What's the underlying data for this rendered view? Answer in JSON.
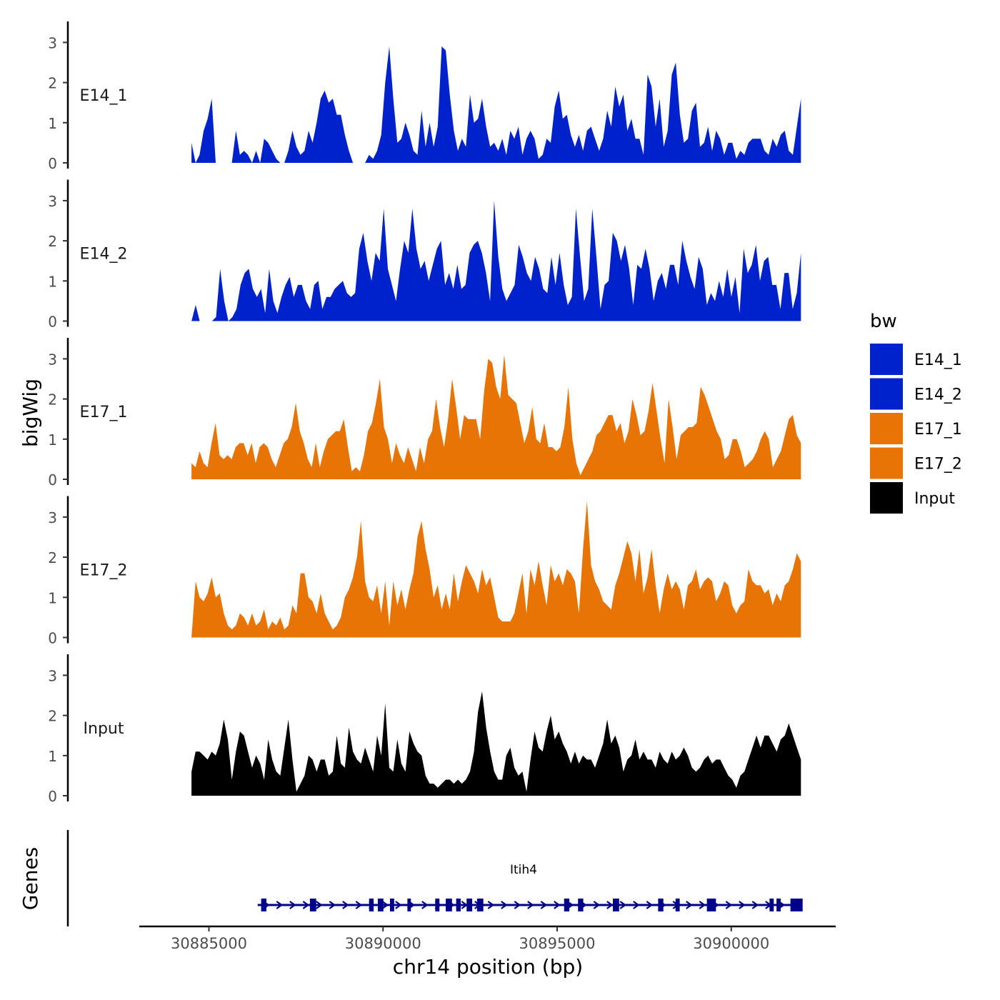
{
  "chart_data": {
    "type": "area",
    "ylabel": "bigWig",
    "xlabel": "chr14 position (bp)",
    "genes_label": "Genes",
    "gene_name": "Itih4",
    "legend_title": "bw",
    "legend_position": "right",
    "xlim": [
      30883000,
      30903000
    ],
    "x_ticks": [
      30885000,
      30890000,
      30895000,
      30900000
    ],
    "x_tick_labels": [
      "30885000",
      "30890000",
      "30895000",
      "30900000"
    ],
    "ylim": [
      0,
      3.5
    ],
    "y_ticks": [
      0,
      1,
      2,
      3
    ],
    "y_tick_labels": [
      "0",
      "1",
      "2",
      "3"
    ],
    "grid": false,
    "signal_start": 30884500,
    "signal_end": 30902000,
    "tracks": [
      {
        "name": "E14_1",
        "color": "#0022cc",
        "values": [
          0.5,
          0,
          0.2,
          0.8,
          1.1,
          1.6,
          0,
          0,
          0,
          0,
          0,
          0.8,
          0.2,
          0.3,
          0.2,
          0,
          0.3,
          0,
          0.6,
          0.5,
          0.3,
          0.1,
          0,
          0,
          0.3,
          0.8,
          0.4,
          0.2,
          0.3,
          0.8,
          0.5,
          1.0,
          1.6,
          1.8,
          1.5,
          1.6,
          1.2,
          1.2,
          0.7,
          0.3,
          0,
          0,
          0,
          0,
          0.2,
          0.1,
          0.3,
          0.7,
          2.0,
          2.9,
          1.6,
          0.5,
          0.6,
          1.0,
          0.7,
          0.3,
          0.2,
          1.3,
          0.4,
          1.0,
          0.4,
          0.9,
          2.9,
          2.8,
          1.7,
          0.8,
          0.3,
          0.6,
          0.4,
          1.7,
          1.0,
          1.1,
          1.6,
          0.9,
          0.4,
          0.5,
          0.3,
          0.6,
          0.2,
          0.8,
          0.6,
          0.9,
          0.2,
          0.6,
          0.8,
          0.6,
          0.1,
          0.2,
          0.6,
          0.5,
          1.4,
          1.8,
          1.1,
          1.2,
          0.7,
          0.4,
          0.7,
          0.3,
          0.8,
          0.9,
          0.6,
          0.3,
          0.6,
          1.3,
          0.9,
          1.9,
          1.4,
          1.7,
          0.8,
          1.1,
          0.6,
          0.6,
          0.2,
          2.2,
          1.9,
          0.9,
          1.6,
          0.4,
          0.8,
          2.2,
          2.5,
          1.2,
          0.5,
          0.6,
          1.3,
          1.5,
          0.4,
          0.5,
          0.9,
          0.3,
          0.8,
          0.6,
          0.2,
          0.5,
          0.5,
          0.1,
          0.3,
          0.2,
          0.5,
          0.6,
          0.6,
          0.6,
          0.3,
          0.2,
          0.6,
          0.4,
          0.7,
          0.8,
          0.3,
          0.2,
          0.9,
          1.6
        ]
      },
      {
        "name": "E14_2",
        "color": "#0022cc",
        "values": [
          0,
          0.4,
          0,
          0,
          0,
          0,
          0.1,
          1.3,
          0.5,
          0,
          0.1,
          0.3,
          0.9,
          1.2,
          1.3,
          0.8,
          0.6,
          0.8,
          0.2,
          1.3,
          0.5,
          0.2,
          0.6,
          0.9,
          1.1,
          0.6,
          0.9,
          0.9,
          0.5,
          0.3,
          0.9,
          1.0,
          0.3,
          0.6,
          0.6,
          0.8,
          0.9,
          1.0,
          0.7,
          0.6,
          0.7,
          1.8,
          2.2,
          1.5,
          1.0,
          1.7,
          1.5,
          2.8,
          1.3,
          0.9,
          0.5,
          1.3,
          2.0,
          1.7,
          2.8,
          1.8,
          1.3,
          1.5,
          1.0,
          1.4,
          1.8,
          2.0,
          0.9,
          1.2,
          0.8,
          1.4,
          0.8,
          0.9,
          1.7,
          1.9,
          2.0,
          1.7,
          1.2,
          0.5,
          3.0,
          1.6,
          0.8,
          0.5,
          0.7,
          0.9,
          1.9,
          1.6,
          1.2,
          1.0,
          1.6,
          1.3,
          0.8,
          0.7,
          1.6,
          0.9,
          1.7,
          0.9,
          0.4,
          0.6,
          2.8,
          1.6,
          0.5,
          0.8,
          2.8,
          1.6,
          0.3,
          0.9,
          1.0,
          2.2,
          2.0,
          1.5,
          1.9,
          1.3,
          0.4,
          1.4,
          1.3,
          1.8,
          1.3,
          0.5,
          1.0,
          1.2,
          0.8,
          1.4,
          1.4,
          0.9,
          2.0,
          1.5,
          1.1,
          0.8,
          1.6,
          1.3,
          0.4,
          0.7,
          0.5,
          1.0,
          0.6,
          1.3,
          0.6,
          1.1,
          0.2,
          1.8,
          1.2,
          1.4,
          1.9,
          1.0,
          1.5,
          1.6,
          0.9,
          0.9,
          0.3,
          1.2,
          1.2,
          0.3,
          0.7,
          1.7
        ]
      },
      {
        "name": "E17_1",
        "color": "#e87405",
        "values": [
          0.4,
          0.3,
          0.7,
          0.4,
          0.3,
          0.9,
          1.4,
          0.6,
          0.5,
          0.6,
          0.5,
          0.8,
          0.9,
          0.9,
          0.6,
          0.9,
          0.4,
          0.8,
          0.9,
          0.8,
          0.5,
          0.3,
          0.6,
          0.9,
          1.0,
          1.3,
          1.9,
          1.2,
          0.9,
          0.5,
          0.3,
          0.9,
          0.3,
          0.7,
          1.0,
          1.1,
          1.2,
          1.2,
          1.5,
          0.8,
          0.2,
          0.3,
          0.2,
          0.6,
          1.2,
          1.4,
          1.9,
          2.5,
          1.3,
          1.0,
          0.4,
          0.9,
          0.6,
          0.4,
          0.8,
          0.5,
          0.2,
          0.8,
          0.4,
          1.0,
          1.2,
          2.0,
          1.3,
          0.8,
          1.5,
          2.5,
          1.8,
          1.0,
          1.6,
          1.5,
          1.5,
          1.5,
          1.0,
          2.2,
          3.0,
          2.9,
          2.3,
          2.0,
          3.1,
          2.1,
          2.0,
          1.9,
          1.4,
          0.9,
          1.2,
          1.8,
          1.0,
          0.9,
          1.4,
          0.8,
          0.8,
          0.7,
          0.8,
          1.3,
          2.3,
          1.0,
          0.4,
          0.1,
          0.3,
          0.5,
          0.7,
          1.1,
          1.2,
          1.4,
          1.6,
          1.6,
          1.2,
          1.4,
          0.9,
          1.2,
          2.0,
          1.6,
          1.1,
          1.2,
          1.7,
          2.4,
          1.7,
          1.0,
          0.4,
          2.0,
          1.3,
          0.5,
          1.1,
          1.2,
          1.3,
          1.3,
          1.4,
          2.3,
          2.1,
          1.8,
          1.5,
          1.2,
          1.0,
          0.5,
          0.6,
          1.0,
          1.0,
          0.7,
          0.3,
          0.4,
          0.5,
          0.7,
          1.0,
          1.2,
          1.0,
          0.3,
          0.5,
          0.7,
          1.1,
          1.5,
          1.6,
          1.1,
          0.9
        ]
      },
      {
        "name": "E17_2",
        "color": "#e87405",
        "values": [
          0,
          1.4,
          1.0,
          0.9,
          1.1,
          1.5,
          1.0,
          1.1,
          0.6,
          0.3,
          0.2,
          0.3,
          0.6,
          0.5,
          0.3,
          0.6,
          0.3,
          0.4,
          0.7,
          0.2,
          0.4,
          0.3,
          0.5,
          0.2,
          0.3,
          0.8,
          0.6,
          1.6,
          1.6,
          1.0,
          0.9,
          0.6,
          1.1,
          0.6,
          0.4,
          0.2,
          0.3,
          0.5,
          1.0,
          1.2,
          1.5,
          2.0,
          2.9,
          1.4,
          1.0,
          0.9,
          1.3,
          0.6,
          1.4,
          0.3,
          1.4,
          0.8,
          1.2,
          0.7,
          1.2,
          1.6,
          2.5,
          2.9,
          2.2,
          1.7,
          1.0,
          1.3,
          0.7,
          1.1,
          0.7,
          1.6,
          0.9,
          1.4,
          1.8,
          1.6,
          1.4,
          1.1,
          1.7,
          1.3,
          1.5,
          1.0,
          0.5,
          0.4,
          0.4,
          0.4,
          0.6,
          1.1,
          1.6,
          0.6,
          1.7,
          1.3,
          1.9,
          1.3,
          0.8,
          1.8,
          1.4,
          1.6,
          1.3,
          1.7,
          1.6,
          1.4,
          0.6,
          2.2,
          3.4,
          1.8,
          1.4,
          1.2,
          0.9,
          0.8,
          0.7,
          1.3,
          1.6,
          2.0,
          2.4,
          2.1,
          1.4,
          2.2,
          1.1,
          1.5,
          2.2,
          1.3,
          0.6,
          1.2,
          1.6,
          1.2,
          1.4,
          1.2,
          0.7,
          1.3,
          1.4,
          1.7,
          1.2,
          1.4,
          1.5,
          1.4,
          0.9,
          1.1,
          1.4,
          1.3,
          0.8,
          0.6,
          0.8,
          0.9,
          1.7,
          1.4,
          1.3,
          1.3,
          1.1,
          1.2,
          0.8,
          1.1,
          0.9,
          1.3,
          1.4,
          1.7,
          2.1,
          1.9
        ]
      },
      {
        "name": "Input",
        "color": "#000000",
        "values": [
          0.6,
          1.1,
          1.1,
          1.0,
          0.9,
          1.1,
          1.0,
          1.3,
          1.9,
          1.4,
          0.4,
          1.1,
          1.6,
          1.5,
          1.1,
          0.7,
          1.0,
          0.8,
          0.4,
          1.4,
          0.9,
          0.6,
          0.5,
          1.2,
          1.9,
          0.9,
          0.1,
          0.3,
          0.5,
          1.0,
          0.9,
          0.6,
          0.9,
          0.9,
          0.5,
          0.6,
          1.5,
          0.8,
          0.7,
          1.7,
          1.1,
          0.9,
          0.8,
          1.2,
          0.9,
          0.6,
          1.5,
          1.0,
          2.3,
          0.7,
          0.6,
          1.4,
          0.8,
          0.6,
          1.6,
          1.3,
          1.1,
          1.0,
          0.5,
          0.3,
          0.3,
          0.2,
          0.3,
          0.4,
          0.4,
          0.3,
          0.4,
          0.3,
          0.4,
          0.6,
          1.1,
          2.1,
          2.6,
          1.7,
          1.1,
          0.6,
          0.4,
          0.4,
          1.0,
          1.2,
          0.7,
          0.5,
          0.6,
          0.1,
          0.9,
          1.6,
          1.2,
          1.1,
          1.6,
          2.0,
          1.4,
          1.6,
          1.3,
          1.1,
          0.8,
          1.1,
          0.8,
          1.0,
          0.9,
          0.9,
          0.7,
          1.0,
          1.3,
          1.9,
          1.3,
          1.5,
          1.2,
          0.6,
          0.9,
          1.0,
          1.4,
          0.9,
          1.1,
          0.9,
          0.9,
          0.7,
          1.1,
          0.9,
          0.8,
          1.1,
          0.9,
          1.0,
          1.2,
          1.0,
          0.7,
          0.6,
          0.7,
          0.9,
          1.0,
          0.8,
          0.9,
          0.9,
          0.7,
          0.5,
          0.4,
          0.2,
          0.5,
          0.6,
          0.9,
          1.2,
          1.5,
          1.2,
          1.5,
          1.5,
          1.3,
          1.1,
          1.4,
          1.5,
          1.8,
          1.5,
          1.2,
          0.9
        ]
      }
    ],
    "gene": {
      "name": "Itih4",
      "start": 30886400,
      "end": 30902000,
      "strand": "+",
      "color": "#00008b",
      "exon_starts": [
        30886500,
        30887900,
        30889600,
        30889850,
        30890200,
        30890700,
        30891500,
        30891800,
        30892100,
        30892400,
        30892700,
        30895200,
        30895600,
        30896600,
        30897900,
        30898400,
        30899300,
        30901100,
        30901300,
        30901700,
        30901850
      ],
      "exon_widths": [
        150,
        180,
        130,
        160,
        120,
        100,
        120,
        180,
        130,
        160,
        180,
        150,
        150,
        180,
        150,
        120,
        260,
        120,
        120,
        150,
        200
      ]
    }
  }
}
